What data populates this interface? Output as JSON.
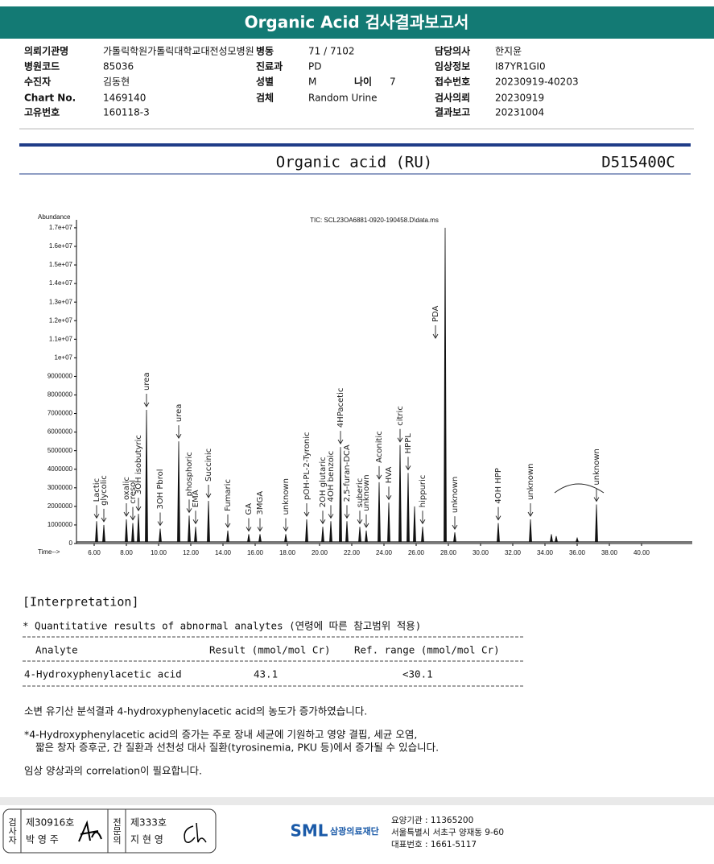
{
  "header": {
    "title": "Organic Acid 검사결과보고서"
  },
  "info": {
    "rows": [
      [
        {
          "label": "의뢰기관명",
          "value": "가톨릭학원가톨릭대학교대전성모병원"
        },
        {
          "label": "병동",
          "value": "71 / 7102"
        },
        {
          "label": "담당의사",
          "value": "한지윤"
        }
      ],
      [
        {
          "label": "병원코드",
          "value": "85036"
        },
        {
          "label": "진료과",
          "value": "PD"
        },
        {
          "label": "임상정보",
          "value": "I87YR1GI0"
        }
      ],
      [
        {
          "label": "수진자",
          "value": "김동현"
        },
        {
          "label": "성별",
          "value": "M"
        },
        {
          "label": "나이",
          "value": "7"
        },
        {
          "label": "접수번호",
          "value": "20230919-40203"
        }
      ],
      [
        {
          "label": "Chart No.",
          "value": "1469140"
        },
        {
          "label": "검체",
          "value": "Random Urine"
        },
        {
          "label": "검사의뢰",
          "value": "20230919"
        }
      ],
      [
        {
          "label": "고유번호",
          "value": "160118-3"
        },
        {
          "label": "결과보고",
          "value": "20231004"
        }
      ]
    ]
  },
  "report": {
    "test_name": "Organic acid (RU)",
    "code": "D515400C"
  },
  "chromatogram": {
    "title": "TIC: SCL23OA6881-0920-190458.D\\data.ms",
    "y_label": "Abundance",
    "x_label": "Time-->",
    "xlim": [
      4.9,
      43.15
    ],
    "ylim": [
      0,
      17430000
    ],
    "xticks": [
      {
        "value": 6,
        "label": "6.00"
      },
      {
        "value": 8,
        "label": "8.00"
      },
      {
        "value": 10,
        "label": "10.00"
      },
      {
        "value": 12,
        "label": "12.00"
      },
      {
        "value": 14,
        "label": "14.00"
      },
      {
        "value": 16,
        "label": "16.00"
      },
      {
        "value": 18,
        "label": "18.00"
      },
      {
        "value": 20,
        "label": "20.00"
      },
      {
        "value": 22,
        "label": "22.00"
      },
      {
        "value": 24,
        "label": "24.00"
      },
      {
        "value": 26,
        "label": "26.00"
      },
      {
        "value": 28,
        "label": "28.00"
      },
      {
        "value": 30,
        "label": "30.00"
      },
      {
        "value": 32,
        "label": "32.00"
      },
      {
        "value": 34,
        "label": "34.00"
      },
      {
        "value": 36,
        "label": "36.00"
      },
      {
        "value": 38,
        "label": "38.00"
      },
      {
        "value": 40,
        "label": "40.00"
      }
    ],
    "yticks": [
      0,
      1000000,
      2000000,
      3000000,
      4000000,
      5000000,
      6000000,
      7000000,
      8000000,
      9000000,
      {
        "value": 10000000,
        "label": "1e+07"
      },
      {
        "value": 11000000,
        "label": "1.1e+07"
      },
      {
        "value": 12000000,
        "label": "1.2e+07"
      },
      {
        "value": 13000000,
        "label": "1.3e+07"
      },
      {
        "value": 14000000,
        "label": "1.4e+07"
      },
      {
        "value": 15000000,
        "label": "1.5e+07"
      },
      {
        "value": 16000000,
        "label": "1.6e+07"
      },
      {
        "value": 17000000,
        "label": "1.7e+07"
      }
    ],
    "peaks": [
      {
        "time": 6.15,
        "abundance": 1200000,
        "label": "Lactic"
      },
      {
        "time": 6.6,
        "abundance": 1000000,
        "label": "glycolic"
      },
      {
        "time": 8.0,
        "abundance": 1300000,
        "label": "oxalic"
      },
      {
        "time": 8.4,
        "abundance": 1100000,
        "label": "cresol"
      },
      {
        "time": 8.75,
        "abundance": 1600000,
        "label": "3OH isobutyric"
      },
      {
        "time": 9.25,
        "abundance": 7200000,
        "label": "urea"
      },
      {
        "time": 10.1,
        "abundance": 800000,
        "label": "3OH Pbrol"
      },
      {
        "time": 11.25,
        "abundance": 5500000,
        "label": "urea"
      },
      {
        "time": 11.9,
        "abundance": 1500000,
        "label": "phosphoric"
      },
      {
        "time": 12.3,
        "abundance": 900000,
        "label": "EMA"
      },
      {
        "time": 13.1,
        "abundance": 2300000,
        "label": "Succinic"
      },
      {
        "time": 14.3,
        "abundance": 700000,
        "label": "Fumaric"
      },
      {
        "time": 15.6,
        "abundance": 500000,
        "label": "GA"
      },
      {
        "time": 16.3,
        "abundance": 500000,
        "label": "3MGA"
      },
      {
        "time": 17.9,
        "abundance": 500000,
        "label": "unknown"
      },
      {
        "time": 19.2,
        "abundance": 1300000,
        "label": "pOH-PL-2-Tyronic"
      },
      {
        "time": 20.2,
        "abundance": 900000,
        "label": "2OH glutaric"
      },
      {
        "time": 20.7,
        "abundance": 1200000,
        "label": "4OH benzoic"
      },
      {
        "time": 21.3,
        "abundance": 5200000,
        "label": "4HPacetic"
      },
      {
        "time": 21.7,
        "abundance": 1200000,
        "label": "2,5-furan-DCA"
      },
      {
        "time": 22.5,
        "abundance": 900000,
        "label": "suberic"
      },
      {
        "time": 22.9,
        "abundance": 700000,
        "label": "unknown"
      },
      {
        "time": 23.7,
        "abundance": 3300000,
        "label": "Aconitic"
      },
      {
        "time": 24.3,
        "abundance": 2200000,
        "label": "HVA"
      },
      {
        "time": 25.0,
        "abundance": 5300000,
        "label": "citric"
      },
      {
        "time": 25.5,
        "abundance": 3800000,
        "label": "HPPL"
      },
      {
        "time": 25.9,
        "abundance": 2000000,
        "label": null
      },
      {
        "time": 26.4,
        "abundance": 900000,
        "label": "hippuric"
      },
      {
        "time": 27.8,
        "abundance": 17000000,
        "label": "PDA"
      },
      {
        "time": 28.4,
        "abundance": 600000,
        "label": "unknown"
      },
      {
        "time": 31.1,
        "abundance": 1100000,
        "label": "4OH HPP"
      },
      {
        "time": 33.1,
        "abundance": 1300000,
        "label": "unknown"
      },
      {
        "time": 34.4,
        "abundance": 500000,
        "label": null
      },
      {
        "time": 34.7,
        "abundance": 400000,
        "label": null
      },
      {
        "time": 36.0,
        "abundance": 300000,
        "label": null
      },
      {
        "time": 37.2,
        "abundance": 2100000,
        "label": "unknown"
      }
    ]
  },
  "interpretation": {
    "heading": "[Interpretation]",
    "note": "* Quantitative results of abnormal analytes (연령에 따른 참고범위 적용)",
    "table": {
      "headers": [
        "Analyte",
        "Result (mmol/mol Cr)",
        "Ref. range (mmol/mol Cr)"
      ],
      "rows": [
        [
          "4-Hydroxyphenylacetic acid",
          "43.1",
          "<30.1"
        ]
      ]
    },
    "summary": "소변 유기산 분석결과 4-hydroxyphenylacetic acid의 농도가 증가하였습니다.",
    "comment": [
      "*4-Hydroxyphenylacetic acid의 증가는 주로 장내 세균에 기원하고 영양 결핍, 세균 오염,",
      "짧은 창자 증후군, 간 질환과 선천성 대사 질환(tyrosinemia, PKU 등)에서 증가될 수 있습니다."
    ],
    "recommendation": "임상 양상과의 correlation이 필요합니다."
  },
  "footer": {
    "tester": {
      "role": "검사자",
      "license": "제30916호",
      "name": "박 영 주"
    },
    "specialist": {
      "role": "전문의",
      "license": "제333호",
      "name": "지 현 영"
    },
    "logo": "SML",
    "institution": "삼광의료재단",
    "contact": [
      "요양기관 : 11365200",
      "서울특별시 서초구 양재동 9-60",
      "대표번호 : 1661-5117"
    ]
  }
}
